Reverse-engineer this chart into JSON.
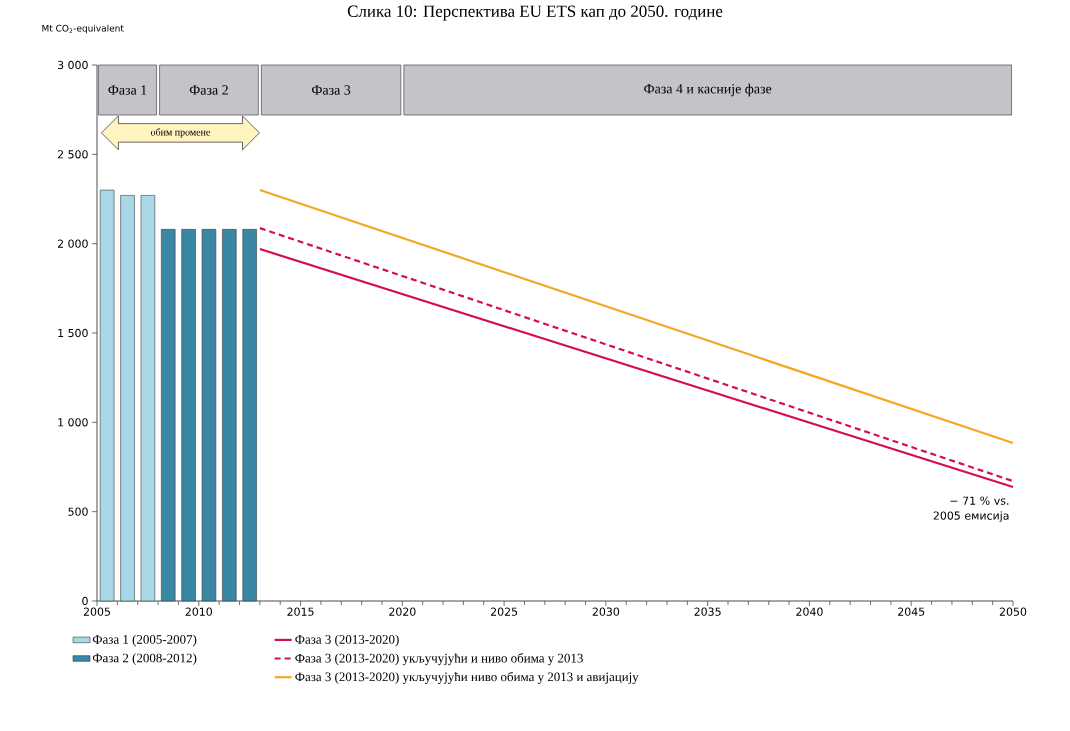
{
  "chart_data": {
    "type": "bar",
    "title": "Слика 10: Перспектива EU ETS кап до 2050. године",
    "ylabel": "Mt CO$_{2}$-equivalent",
    "series": [
      {
        "name": "Фаза 1 (2005-2007)",
        "color": "#a8d8e6",
        "x": [
          2005.5,
          2006.5,
          2007.5
        ],
        "values": [
          2300,
          2270,
          2270
        ]
      },
      {
        "name": "Фаза 2 (2008-2012)",
        "color": "#3a87a3",
        "x": [
          2008.5,
          2009.5,
          2010.5,
          2011.5,
          2012.5
        ],
        "values": [
          2080,
          2080,
          2080,
          2080,
          2080
        ]
      },
      {
        "name": "Фаза 3 (2013-2020)",
        "type": "line",
        "color": "#d4104a",
        "line_style": "solid",
        "x": [
          2013,
          2050
        ],
        "values": [
          1970,
          638
        ]
      },
      {
        "name": "Фаза 3 (2013-2020) укључујући и ниво обима у 2013",
        "type": "line",
        "color": "#d4104a",
        "line_style": "dashed",
        "x": [
          2013,
          2050
        ],
        "values": [
          2087,
          671
        ]
      },
      {
        "name": "Фаза 3 (2013-2020) укључујући ниво обима у 2013 и авијацију",
        "type": "line",
        "color": "#f5a623",
        "line_style": "solid",
        "x": [
          2013,
          2050
        ],
        "values": [
          2300,
          884
        ]
      }
    ],
    "xlim": [
      2005,
      2050
    ],
    "xticks": [
      2005,
      2010,
      2015,
      2020,
      2025,
      2030,
      2035,
      2040,
      2045,
      2050
    ],
    "ylim": [
      0,
      3000
    ],
    "yticks": [
      0,
      500,
      {
        "value": 1000,
        "label": "1 000"
      },
      {
        "value": 1500,
        "label": "1 500"
      },
      {
        "value": 2000,
        "label": "2 000"
      },
      {
        "value": 2500,
        "label": "2 500"
      },
      {
        "value": 3000,
        "label": "3 000"
      }
    ],
    "bands": [
      {
        "axis": "x",
        "from": 2005,
        "to": 2008,
        "label": "Фаза 1",
        "color": "#c4c4c8"
      },
      {
        "axis": "x",
        "from": 2008,
        "to": 2013,
        "label": "Фаза 2",
        "color": "#c4c4c8"
      },
      {
        "axis": "x",
        "from": 2013,
        "to": 2020,
        "label": "Фаза 3",
        "color": "#c4c4c8"
      },
      {
        "axis": "x",
        "from": 2020,
        "to": 2050,
        "label": "Фаза 4 и касније фазе",
        "color": "#c4c4c8"
      }
    ],
    "annotations": [
      "обим промене",
      {
        "text": "− 71 % vs. 2005 емисија",
        "x": 2050,
        "y": 638
      }
    ],
    "legend": "bottom",
    "grid": false
  }
}
